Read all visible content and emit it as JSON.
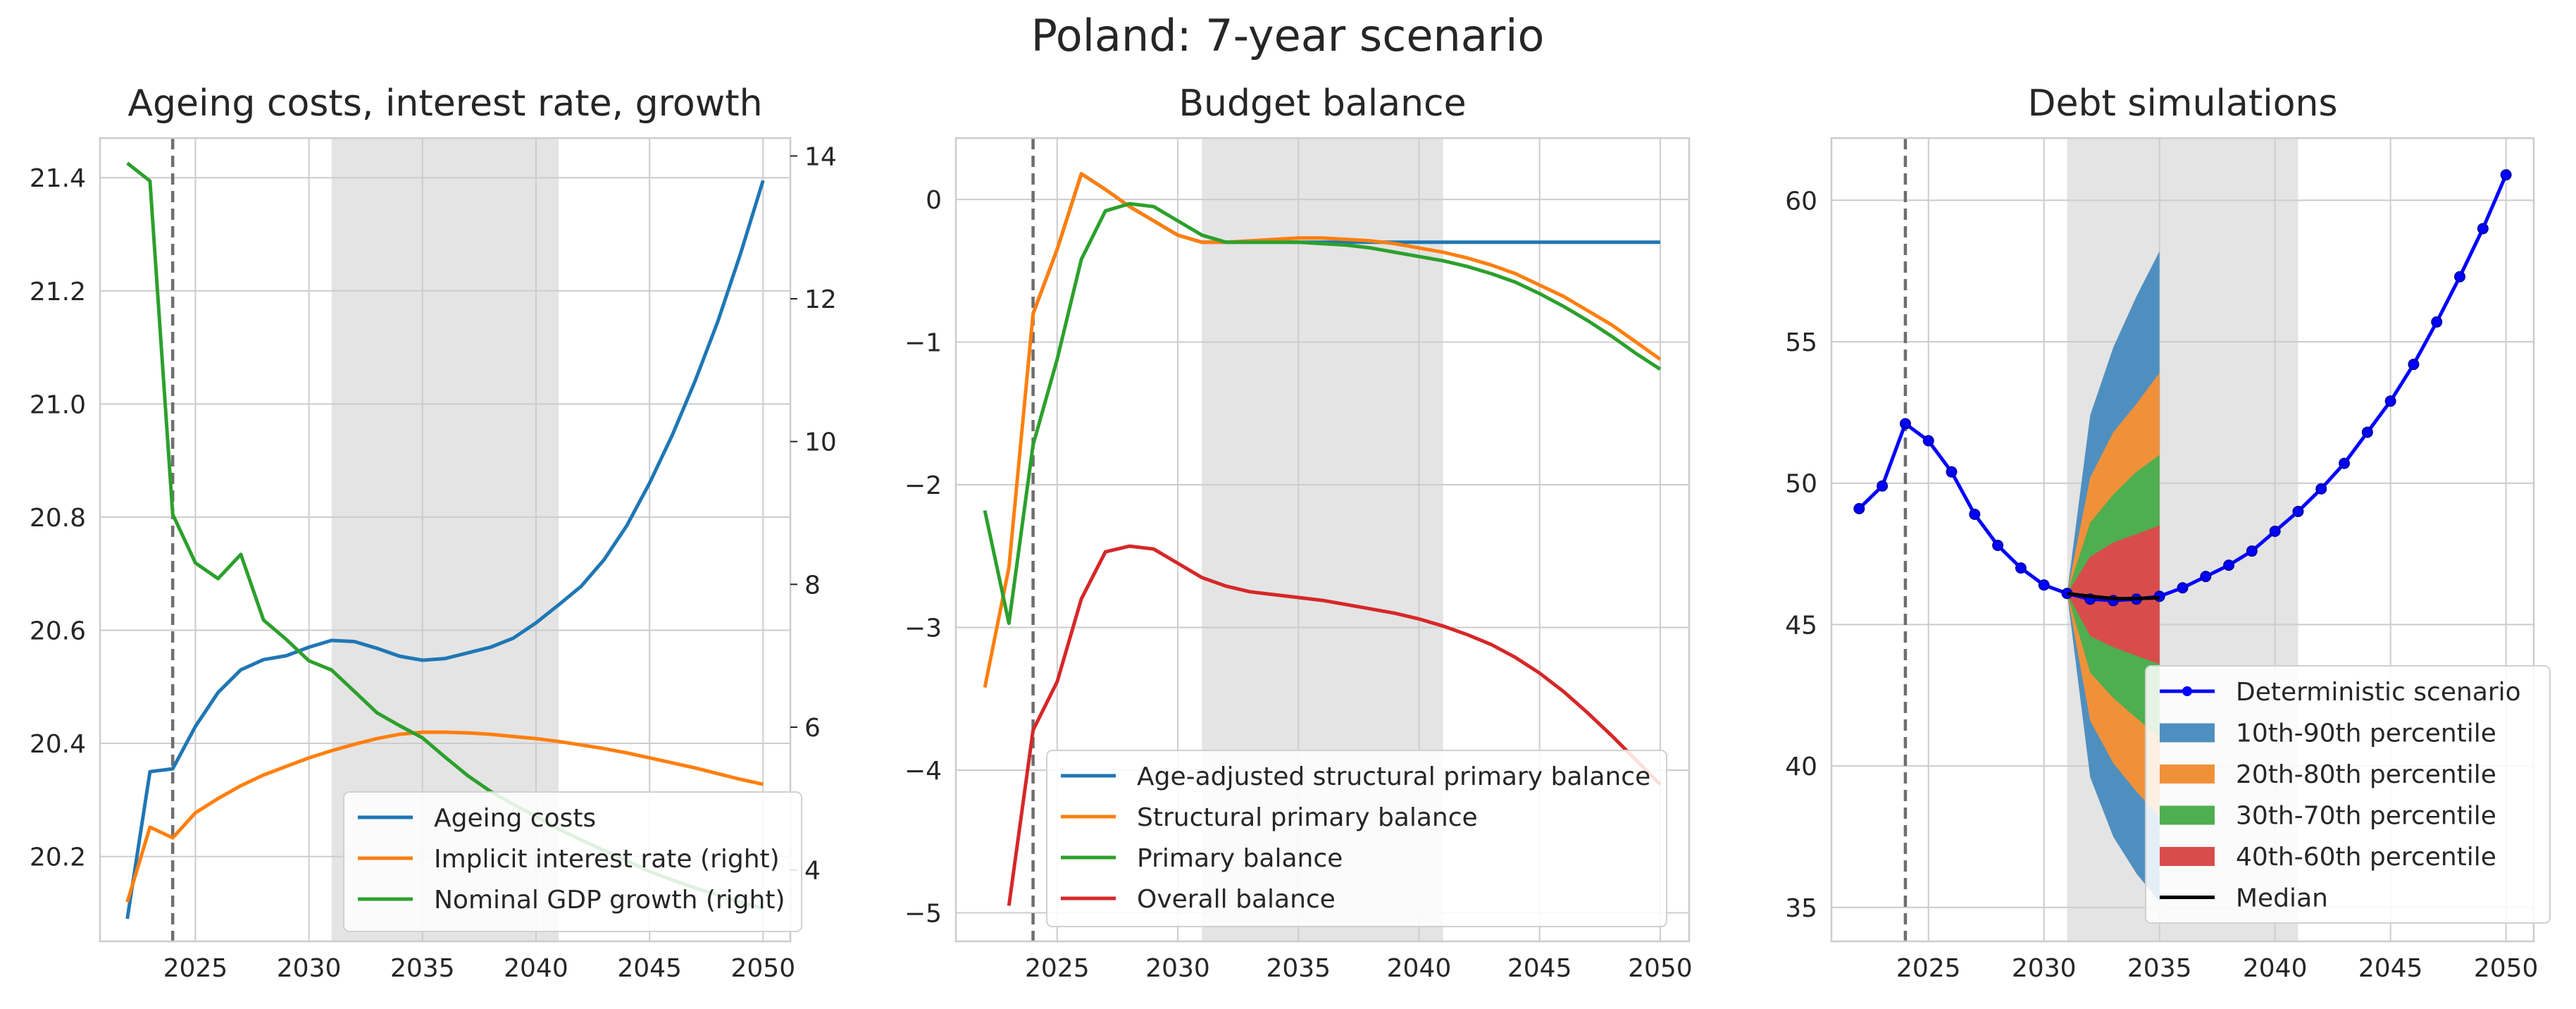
{
  "suptitle": "Poland: 7-year scenario",
  "chart_data": [
    {
      "type": "line",
      "title": "Ageing costs, interest rate, growth",
      "xlim": [
        2020.8,
        2051.2
      ],
      "xticks": [
        2025,
        2030,
        2035,
        2040,
        2045,
        2050
      ],
      "ylim": [
        20.05,
        21.47
      ],
      "yticks": [
        20.2,
        20.4,
        20.6,
        20.8,
        21.0,
        21.2,
        21.4
      ],
      "ytick_labels": [
        "20.2",
        "20.4",
        "20.6",
        "20.8",
        "21.0",
        "21.2",
        "21.4"
      ],
      "y2lim": [
        3.0,
        14.25
      ],
      "y2ticks": [
        4,
        6,
        8,
        10,
        12,
        14
      ],
      "shaded_range": [
        2031,
        2041
      ],
      "vline": 2024,
      "legend_position": "lower right",
      "x": [
        2022,
        2023,
        2024,
        2025,
        2026,
        2027,
        2028,
        2029,
        2030,
        2031,
        2032,
        2033,
        2034,
        2035,
        2036,
        2037,
        2038,
        2039,
        2040,
        2041,
        2042,
        2043,
        2044,
        2045,
        2046,
        2047,
        2048,
        2049,
        2050
      ],
      "series": [
        {
          "name": "Ageing costs",
          "axis": "left",
          "color": "#1f77b4",
          "values": [
            20.09,
            20.35,
            20.355,
            20.43,
            20.49,
            20.53,
            20.548,
            20.555,
            20.57,
            20.582,
            20.58,
            20.568,
            20.554,
            20.547,
            20.55,
            20.56,
            20.57,
            20.586,
            20.613,
            20.645,
            20.678,
            20.725,
            20.785,
            20.86,
            20.945,
            21.04,
            21.145,
            21.265,
            21.395
          ]
        },
        {
          "name": "Implicit interest rate (right)",
          "axis": "right",
          "color": "#ff7f0e",
          "values": [
            3.55,
            4.6,
            4.45,
            4.8,
            5.0,
            5.18,
            5.33,
            5.45,
            5.57,
            5.67,
            5.76,
            5.84,
            5.9,
            5.93,
            5.93,
            5.92,
            5.9,
            5.87,
            5.84,
            5.8,
            5.75,
            5.7,
            5.64,
            5.57,
            5.5,
            5.43,
            5.35,
            5.27,
            5.2
          ]
        },
        {
          "name": "Nominal GDP growth (right)",
          "axis": "right",
          "color": "#2ca02c",
          "values": [
            13.9,
            13.65,
            8.98,
            8.3,
            8.08,
            8.42,
            7.5,
            7.23,
            6.93,
            6.8,
            6.5,
            6.2,
            6.02,
            5.85,
            5.58,
            5.32,
            5.1,
            4.92,
            4.75,
            4.57,
            4.42,
            4.27,
            4.13,
            3.98,
            3.86,
            3.75,
            3.65,
            3.55,
            3.46
          ]
        }
      ]
    },
    {
      "type": "line",
      "title": "Budget balance",
      "xlim": [
        2020.8,
        2051.2
      ],
      "xticks": [
        2025,
        2030,
        2035,
        2040,
        2045,
        2050
      ],
      "ylim": [
        -5.2,
        0.43
      ],
      "yticks": [
        -5,
        -4,
        -3,
        -2,
        -1,
        0
      ],
      "ytick_labels": [
        "−5",
        "−4",
        "−3",
        "−2",
        "−1",
        "0"
      ],
      "shaded_range": [
        2031,
        2041
      ],
      "vline": 2024,
      "legend_position": "lower right",
      "x": [
        2022,
        2023,
        2024,
        2025,
        2026,
        2027,
        2028,
        2029,
        2030,
        2031,
        2032,
        2033,
        2034,
        2035,
        2036,
        2037,
        2038,
        2039,
        2040,
        2041,
        2042,
        2043,
        2044,
        2045,
        2046,
        2047,
        2048,
        2049,
        2050
      ],
      "series": [
        {
          "name": "Age-adjusted structural primary balance",
          "color": "#1f77b4",
          "values": [
            null,
            null,
            -0.8,
            -0.35,
            0.18,
            0.07,
            -0.05,
            -0.15,
            -0.25,
            -0.3,
            -0.3,
            -0.3,
            -0.3,
            -0.3,
            -0.3,
            -0.3,
            -0.3,
            -0.3,
            -0.3,
            -0.3,
            -0.3,
            -0.3,
            -0.3,
            -0.3,
            -0.3,
            -0.3,
            -0.3,
            -0.3,
            -0.3
          ]
        },
        {
          "name": "Structural primary balance",
          "color": "#ff7f0e",
          "values": [
            -3.42,
            -2.58,
            -0.8,
            -0.35,
            0.18,
            0.07,
            -0.05,
            -0.15,
            -0.25,
            -0.3,
            -0.3,
            -0.29,
            -0.28,
            -0.27,
            -0.27,
            -0.28,
            -0.29,
            -0.31,
            -0.34,
            -0.37,
            -0.41,
            -0.46,
            -0.52,
            -0.6,
            -0.68,
            -0.78,
            -0.88,
            -1.0,
            -1.12
          ]
        },
        {
          "name": "Primary balance",
          "color": "#2ca02c",
          "values": [
            -2.18,
            -2.97,
            -1.72,
            -1.12,
            -0.42,
            -0.08,
            -0.03,
            -0.05,
            -0.15,
            -0.25,
            -0.3,
            -0.3,
            -0.3,
            -0.3,
            -0.31,
            -0.32,
            -0.34,
            -0.37,
            -0.4,
            -0.43,
            -0.47,
            -0.52,
            -0.58,
            -0.66,
            -0.75,
            -0.85,
            -0.96,
            -1.08,
            -1.19
          ]
        },
        {
          "name": "Overall balance",
          "color": "#d62728",
          "values": [
            null,
            -4.95,
            -3.72,
            -3.38,
            -2.8,
            -2.47,
            -2.43,
            -2.45,
            -2.55,
            -2.65,
            -2.71,
            -2.75,
            -2.77,
            -2.79,
            -2.81,
            -2.84,
            -2.87,
            -2.9,
            -2.94,
            -2.99,
            -3.05,
            -3.12,
            -3.21,
            -3.32,
            -3.45,
            -3.6,
            -3.76,
            -3.93,
            -4.1
          ]
        }
      ]
    },
    {
      "type": "line",
      "title": "Debt simulations",
      "xlim": [
        2020.8,
        2051.2
      ],
      "xticks": [
        2025,
        2030,
        2035,
        2040,
        2045,
        2050
      ],
      "ylim": [
        33.8,
        62.2
      ],
      "yticks": [
        35,
        40,
        45,
        50,
        55,
        60
      ],
      "ytick_labels": [
        "35",
        "40",
        "45",
        "50",
        "55",
        "60"
      ],
      "shaded_range": [
        2031,
        2041
      ],
      "vline": 2024,
      "legend_position": "lower right",
      "x": [
        2022,
        2023,
        2024,
        2025,
        2026,
        2027,
        2028,
        2029,
        2030,
        2031,
        2032,
        2033,
        2034,
        2035,
        2036,
        2037,
        2038,
        2039,
        2040,
        2041,
        2042,
        2043,
        2044,
        2045,
        2046,
        2047,
        2048,
        2049,
        2050
      ],
      "series": [
        {
          "name": "Deterministic scenario",
          "color": "#0000ff",
          "values": [
            49.1,
            49.9,
            52.1,
            51.5,
            50.4,
            48.9,
            47.8,
            47.0,
            46.4,
            46.1,
            45.9,
            45.85,
            45.9,
            46.0,
            46.3,
            46.7,
            47.1,
            47.6,
            48.3,
            49.0,
            49.8,
            50.7,
            51.8,
            52.9,
            54.2,
            55.7,
            57.3,
            59.0,
            60.9
          ]
        },
        {
          "name": "Median",
          "color": "#000000",
          "x": [
            2031,
            2032,
            2033,
            2034,
            2035
          ],
          "values": [
            46.1,
            46.0,
            45.92,
            45.92,
            45.95
          ]
        }
      ],
      "fan": {
        "x": [
          2031,
          2032,
          2033,
          2034,
          2035
        ],
        "bands": [
          {
            "name": "10th-90th percentile",
            "color": "#4f8fbf",
            "lower": [
              46.1,
              39.6,
              37.5,
              36.2,
              35.2
            ],
            "upper": [
              46.1,
              52.4,
              54.8,
              56.6,
              58.2
            ]
          },
          {
            "name": "20th-80th percentile",
            "color": "#f0913a",
            "lower": [
              46.1,
              41.6,
              40.1,
              39.1,
              38.2
            ],
            "upper": [
              46.1,
              50.2,
              51.8,
              52.8,
              53.9
            ]
          },
          {
            "name": "30th-70th percentile",
            "color": "#4fae4f",
            "lower": [
              46.1,
              43.3,
              42.4,
              41.7,
              41.0
            ],
            "upper": [
              46.1,
              48.6,
              49.6,
              50.4,
              51.0
            ]
          },
          {
            "name": "40th-60th percentile",
            "color": "#d94c4c",
            "lower": [
              46.1,
              44.6,
              44.2,
              43.9,
              43.6
            ],
            "upper": [
              46.1,
              47.4,
              47.9,
              48.2,
              48.5
            ]
          }
        ]
      }
    }
  ]
}
